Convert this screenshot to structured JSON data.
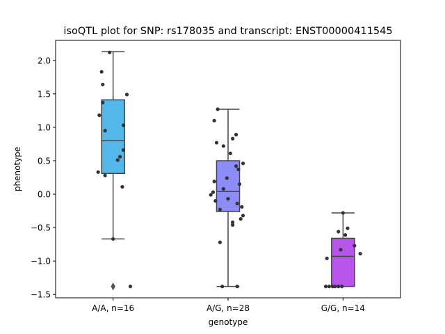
{
  "chart_data": {
    "type": "box",
    "title": "isoQTL plot for SNP: rs178035 and transcript: ENST00000411545",
    "xlabel": "genotype",
    "ylabel": "phenotype",
    "ylim": [
      -1.55,
      2.3
    ],
    "yticks": [
      -1.5,
      -1.0,
      -0.5,
      0.0,
      0.5,
      1.0,
      1.5,
      2.0
    ],
    "ytick_labels": [
      "−1.5",
      "−1.0",
      "−0.5",
      "0.0",
      "0.5",
      "1.0",
      "1.5",
      "2.0"
    ],
    "grid": false,
    "categories": [
      "A/A, n=16",
      "A/G, n=28",
      "G/G, n=14"
    ],
    "boxes": [
      {
        "category": "A/A, n=16",
        "color": "#53b7ea",
        "q1": 0.31,
        "median": 0.8,
        "q3": 1.41,
        "whisker_low": -0.67,
        "whisker_high": 2.13,
        "outliers": [
          -1.38
        ]
      },
      {
        "category": "A/G, n=28",
        "color": "#8c8cf6",
        "q1": -0.26,
        "median": 0.04,
        "q3": 0.5,
        "whisker_low": -1.38,
        "whisker_high": 1.27,
        "outliers": []
      },
      {
        "category": "G/G, n=14",
        "color": "#b754ea",
        "q1": -1.38,
        "median": -0.93,
        "q3": -0.66,
        "whisker_low": -1.38,
        "whisker_high": -0.28,
        "outliers": []
      }
    ],
    "points": [
      [
        {
          "x": -0.03,
          "y": 2.12
        },
        {
          "x": -0.1,
          "y": 1.83
        },
        {
          "x": -0.09,
          "y": 1.64
        },
        {
          "x": 0.12,
          "y": 1.49
        },
        {
          "x": -0.09,
          "y": 1.37
        },
        {
          "x": -0.12,
          "y": 1.18
        },
        {
          "x": 0.09,
          "y": 1.03
        },
        {
          "x": -0.07,
          "y": 0.95
        },
        {
          "x": 0.09,
          "y": 0.66
        },
        {
          "x": 0.06,
          "y": 0.56
        },
        {
          "x": 0.04,
          "y": 0.51
        },
        {
          "x": -0.13,
          "y": 0.33
        },
        {
          "x": -0.07,
          "y": 0.28
        },
        {
          "x": 0.08,
          "y": 0.11
        },
        {
          "x": 0.0,
          "y": -0.67
        },
        {
          "x": 0.15,
          "y": -1.38
        }
      ],
      [
        {
          "x": -0.09,
          "y": 1.27
        },
        {
          "x": -0.12,
          "y": 1.1
        },
        {
          "x": 0.07,
          "y": 0.89
        },
        {
          "x": 0.04,
          "y": 0.83
        },
        {
          "x": -0.1,
          "y": 0.77
        },
        {
          "x": -0.04,
          "y": 0.72
        },
        {
          "x": 0.02,
          "y": 0.61
        },
        {
          "x": 0.13,
          "y": 0.46
        },
        {
          "x": 0.07,
          "y": 0.42
        },
        {
          "x": 0.09,
          "y": 0.37
        },
        {
          "x": -0.01,
          "y": 0.24
        },
        {
          "x": -0.12,
          "y": 0.19
        },
        {
          "x": 0.1,
          "y": 0.15
        },
        {
          "x": -0.04,
          "y": 0.08
        },
        {
          "x": -0.13,
          "y": 0.03
        },
        {
          "x": -0.15,
          "y": -0.01
        },
        {
          "x": -0.11,
          "y": -0.1
        },
        {
          "x": 0.0,
          "y": -0.07
        },
        {
          "x": 0.08,
          "y": -0.14
        },
        {
          "x": 0.12,
          "y": -0.19
        },
        {
          "x": -0.07,
          "y": -0.23
        },
        {
          "x": 0.13,
          "y": -0.32
        },
        {
          "x": 0.11,
          "y": -0.37
        },
        {
          "x": 0.04,
          "y": -0.42
        },
        {
          "x": 0.04,
          "y": -0.46
        },
        {
          "x": -0.07,
          "y": -0.72
        },
        {
          "x": -0.05,
          "y": -1.38
        },
        {
          "x": 0.08,
          "y": -1.38
        }
      ],
      [
        {
          "x": 0.0,
          "y": -0.28
        },
        {
          "x": 0.04,
          "y": -0.51
        },
        {
          "x": -0.04,
          "y": -0.56
        },
        {
          "x": 0.02,
          "y": -0.61
        },
        {
          "x": 0.1,
          "y": -0.77
        },
        {
          "x": -0.02,
          "y": -0.83
        },
        {
          "x": 0.15,
          "y": -0.89
        },
        {
          "x": -0.14,
          "y": -0.96
        },
        {
          "x": -0.15,
          "y": -1.38
        },
        {
          "x": -0.12,
          "y": -1.38
        },
        {
          "x": -0.09,
          "y": -1.38
        },
        {
          "x": -0.07,
          "y": -1.38
        },
        {
          "x": -0.04,
          "y": -1.38
        },
        {
          "x": -0.01,
          "y": -1.38
        }
      ]
    ]
  }
}
